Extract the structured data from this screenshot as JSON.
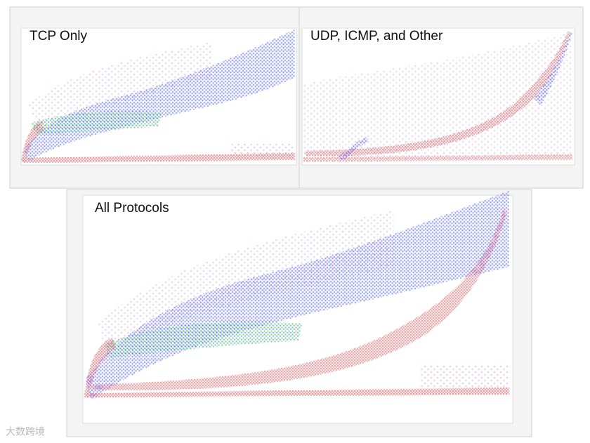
{
  "panels": [
    {
      "title": "TCP Only"
    },
    {
      "title": "UDP, ICMP, and Other"
    },
    {
      "title": "All Protocols"
    }
  ],
  "watermark": "大数跨境"
}
